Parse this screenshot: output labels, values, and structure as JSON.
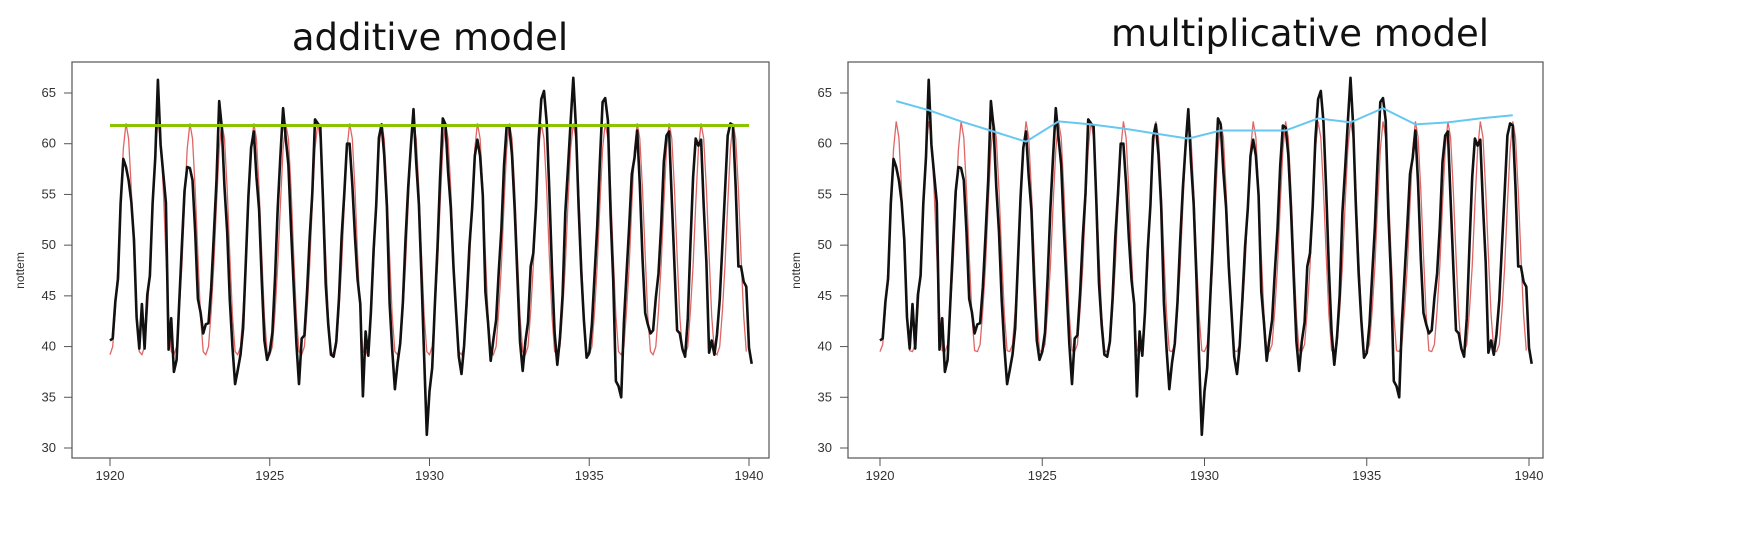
{
  "chart_data": [
    {
      "type": "line",
      "title": "additive model",
      "xlabel": "",
      "ylabel": "nottem",
      "xlim": [
        1920,
        1940
      ],
      "ylim": [
        30,
        66
      ],
      "x_ticks": [
        "1920",
        "1925",
        "1930",
        "1935",
        "1940"
      ],
      "y_ticks": [
        "30",
        "35",
        "40",
        "45",
        "50",
        "55",
        "60",
        "65"
      ],
      "grid": false,
      "legend": "none",
      "series": [
        {
          "color": "#111111",
          "x_start": 1920.0,
          "step": 0.0833,
          "values": [
            40.6,
            40.8,
            44.4,
            46.7,
            54.1,
            58.5,
            57.7,
            56.4,
            54.3,
            50.5,
            42.9,
            39.8,
            44.2,
            39.8,
            45.1,
            47.0,
            54.1,
            58.7,
            66.3,
            59.9,
            57.0,
            54.2,
            39.7,
            42.8,
            37.5,
            38.7,
            44.3,
            50.0,
            55.3,
            57.7,
            57.6,
            56.4,
            51.3,
            44.7,
            43.4,
            41.3,
            42.2,
            42.3,
            45.8,
            50.9,
            56.4,
            64.2,
            61.6,
            55.7,
            51.3,
            44.6,
            39.9,
            36.3,
            37.7,
            39.2,
            41.8,
            48.3,
            54.8,
            59.6,
            61.2,
            56.8,
            53.5,
            46.4,
            40.6,
            38.7,
            39.5,
            41.4,
            46.9,
            53.6,
            58.8,
            63.5,
            60.6,
            57.9,
            51.5,
            45.9,
            40.3,
            36.3,
            40.8,
            41.1,
            45.3,
            50.8,
            55.1,
            62.4,
            62.0,
            61.7,
            54.4,
            46.2,
            42.1,
            39.2,
            39.0,
            40.5,
            44.8,
            50.8,
            55.1,
            60.0,
            60.0,
            56.0,
            50.8,
            46.6,
            44.2,
            35.1,
            41.5,
            39.1,
            43.4,
            49.5,
            53.9,
            60.6,
            61.9,
            58.9,
            53.8,
            44.3,
            39.7,
            35.8,
            38.4,
            40.3,
            44.4,
            50.5,
            55.7,
            59.8,
            63.4,
            58.2,
            54.0,
            46.8,
            38.8,
            31.3,
            35.6,
            37.9,
            44.0,
            49.8,
            56.7,
            62.5,
            61.9,
            57.2,
            53.7,
            47.8,
            43.4,
            39.0,
            37.3,
            40.1,
            44.7,
            49.9,
            53.6,
            58.8,
            60.4,
            58.8,
            54.9,
            45.4,
            42.3,
            38.6,
            40.7,
            42.6,
            47.3,
            51.6,
            57.8,
            61.8,
            61.6,
            58.9,
            53.5,
            46.9,
            40.5,
            37.6,
            40.5,
            42.4,
            47.9,
            49.2,
            53.8,
            60.5,
            64.4,
            65.2,
            62.1,
            55.4,
            47.6,
            41.4,
            38.2,
            40.9,
            45.1,
            53.2,
            57.5,
            62.1,
            66.5,
            61.7,
            53.8,
            47.3,
            42.6,
            38.9,
            39.4,
            42.2,
            47.1,
            51.8,
            58.3,
            64.1,
            64.5,
            62.3,
            53.0,
            46.6,
            36.6,
            36.1,
            35.0,
            42.4,
            47.1,
            51.9,
            57.0,
            58.6,
            61.3,
            56.0,
            48.7,
            43.3,
            42.2,
            41.3,
            41.6,
            44.8,
            47.2,
            51.8,
            58.2,
            60.8,
            61.2,
            54.5,
            47.9,
            41.6,
            41.3,
            39.8,
            39.0,
            42.8,
            50.0,
            56.7,
            60.5,
            59.8,
            60.4,
            53.9,
            48.3,
            39.4,
            40.6,
            39.2,
            41.2,
            44.6,
            50.0,
            55.3,
            60.8,
            62.0,
            61.8,
            55.7,
            47.9,
            47.9,
            46.4,
            45.9,
            39.9,
            38.3
          ]
        },
        {
          "color": "#e06666",
          "x_start": 1920.0,
          "step": 0.0833,
          "pattern": [
            39.2,
            40.0,
            43.5,
            48.0,
            54.0,
            59.5,
            62.0,
            60.5,
            55.5,
            49.0,
            43.0,
            39.5
          ],
          "values": []
        },
        {
          "color": "#8bc400",
          "x": [
            1920.0,
            1940.0
          ],
          "values": [
            61.8,
            61.8
          ]
        }
      ]
    },
    {
      "type": "line",
      "title": "multiplicative model",
      "xlabel": "",
      "ylabel": "nottem",
      "xlim": [
        1920,
        1940
      ],
      "ylim": [
        30,
        66
      ],
      "x_ticks": [
        "1920",
        "1925",
        "1930",
        "1935",
        "1940"
      ],
      "y_ticks": [
        "30",
        "35",
        "40",
        "45",
        "50",
        "55",
        "60",
        "65"
      ],
      "grid": false,
      "legend": "none",
      "series": [
        {
          "color": "#111111",
          "same_as": "additive-black"
        },
        {
          "color": "#e06666",
          "pattern": [
            39.5,
            40.2,
            43.6,
            47.9,
            54.0,
            59.4,
            62.2,
            60.6,
            55.4,
            49.0,
            43.1,
            39.6
          ],
          "values": []
        },
        {
          "color": "#66c8f0",
          "x": [
            1920.5,
            1921.5,
            1922.5,
            1923.5,
            1924.5,
            1925.5,
            1926.5,
            1927.5,
            1928.5,
            1929.5,
            1930.5,
            1931.5,
            1932.5,
            1933.5,
            1934.5,
            1935.5,
            1936.5,
            1937.5,
            1938.5,
            1939.5
          ],
          "values": [
            64.2,
            63.3,
            62.2,
            61.2,
            60.2,
            62.2,
            61.9,
            61.5,
            61.0,
            60.5,
            61.3,
            61.3,
            61.3,
            62.5,
            62.1,
            63.5,
            61.9,
            62.1,
            62.5,
            62.8
          ]
        }
      ]
    }
  ]
}
